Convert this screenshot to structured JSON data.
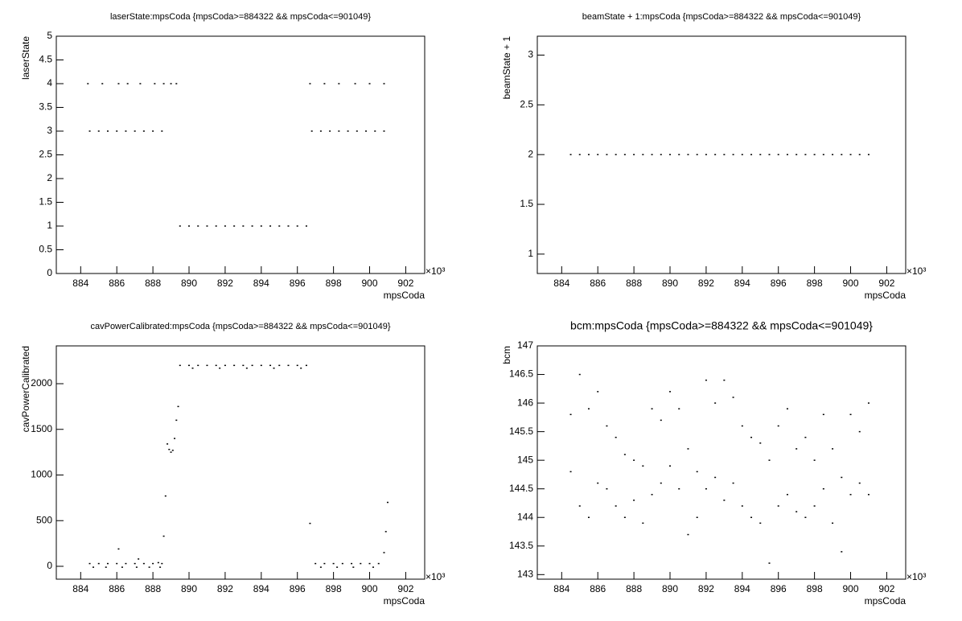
{
  "chart_data": [
    {
      "type": "scatter",
      "title": "laserState:mpsCoda {mpsCoda>=884322 && mpsCoda<=901049}",
      "x_label": "mpsCoda",
      "y_label": "laserState",
      "x_scale_label": "×10³",
      "color": "#000000",
      "xlim": [
        882.65,
        903.05
      ],
      "xticks": [
        884,
        886,
        888,
        890,
        892,
        894,
        896,
        898,
        900,
        902
      ],
      "ylim": [
        0,
        5
      ],
      "yticks": [
        0,
        0.5,
        1,
        1.5,
        2,
        2.5,
        3,
        3.5,
        4,
        4.5,
        5
      ],
      "x": [
        884.5,
        885,
        885.5,
        886,
        886.5,
        887,
        887.5,
        888,
        888.5,
        884.4,
        885.2,
        886.1,
        886.6,
        887.3,
        888.1,
        888.6,
        889.0,
        889.3,
        889.5,
        890,
        890.5,
        891,
        891.5,
        892,
        892.5,
        893,
        893.5,
        894,
        894.5,
        895,
        895.5,
        896,
        896.5,
        896.7,
        896.8,
        897.3,
        897.8,
        898.3,
        898.8,
        899.3,
        899.8,
        900.3,
        900.8,
        897.5,
        898.3,
        899.2,
        900.0,
        900.8
      ],
      "values": [
        3,
        3,
        3,
        3,
        3,
        3,
        3,
        3,
        3,
        4,
        4,
        4,
        4,
        4,
        4,
        4,
        4,
        4,
        1,
        1,
        1,
        1,
        1,
        1,
        1,
        1,
        1,
        1,
        1,
        1,
        1,
        1,
        1,
        4,
        3,
        3,
        3,
        3,
        3,
        3,
        3,
        3,
        3,
        4,
        4,
        4,
        4,
        4
      ]
    },
    {
      "type": "scatter",
      "title": "beamState + 1:mpsCoda {mpsCoda>=884322 && mpsCoda<=901049}",
      "x_label": "mpsCoda",
      "y_label": "beamState + 1",
      "x_scale_label": "×10³",
      "color": "#000000",
      "xlim": [
        882.65,
        903.05
      ],
      "xticks": [
        884,
        886,
        888,
        890,
        892,
        894,
        896,
        898,
        900,
        902
      ],
      "ylim": [
        0.805,
        3.19
      ],
      "yticks": [
        1,
        1.5,
        2,
        2.5,
        3
      ],
      "x": [
        884.5,
        885,
        885.5,
        886,
        886.5,
        887,
        887.5,
        888,
        888.5,
        889,
        889.5,
        890,
        890.5,
        891,
        891.5,
        892,
        892.5,
        893,
        893.5,
        894,
        894.5,
        895,
        895.5,
        896,
        896.5,
        897,
        897.5,
        898,
        898.5,
        899,
        899.5,
        900,
        900.5,
        901
      ],
      "values": [
        2,
        2,
        2,
        2,
        2,
        2,
        2,
        2,
        2,
        2,
        2,
        2,
        2,
        2,
        2,
        2,
        2,
        2,
        2,
        2,
        2,
        2,
        2,
        2,
        2,
        2,
        2,
        2,
        2,
        2,
        2,
        2,
        2,
        2
      ]
    },
    {
      "type": "scatter",
      "title": "cavPowerCalibrated:mpsCoda {mpsCoda>=884322 && mpsCoda<=901049}",
      "x_label": "mpsCoda",
      "y_label": "cavPowerCalibrated",
      "x_scale_label": "×10³",
      "color": "#000000",
      "xlim": [
        882.65,
        903.05
      ],
      "xticks": [
        884,
        886,
        888,
        890,
        892,
        894,
        896,
        898,
        900,
        902
      ],
      "ylim": [
        -141,
        2414
      ],
      "yticks": [
        0,
        500,
        1000,
        1500,
        2000
      ],
      "x": [
        884.5,
        885,
        885.5,
        886,
        886.5,
        887,
        887.5,
        888,
        888.5,
        884.7,
        885.4,
        886.3,
        887.1,
        887.8,
        888.4,
        886.1,
        887.2,
        888.3,
        888.6,
        888.7,
        888.8,
        888.9,
        889.0,
        889.1,
        889.2,
        889.3,
        889.4,
        889.5,
        890,
        890.5,
        891,
        891.5,
        892,
        892.5,
        893,
        893.5,
        894,
        894.5,
        895,
        895.5,
        896,
        896.5,
        890.2,
        891.7,
        893.2,
        894.7,
        896.2,
        896.7,
        897,
        897.5,
        898,
        898.5,
        899,
        899.5,
        900,
        900.5,
        897.3,
        898.2,
        899.1,
        900.2,
        900.8,
        900.9,
        901.0
      ],
      "values": [
        30,
        30,
        30,
        30,
        30,
        30,
        30,
        30,
        30,
        -10,
        -10,
        -10,
        -10,
        -10,
        -10,
        190,
        80,
        40,
        330,
        770,
        1340,
        1280,
        1250,
        1270,
        1400,
        1600,
        1750,
        2200,
        2200,
        2200,
        2200,
        2200,
        2200,
        2200,
        2200,
        2200,
        2200,
        2200,
        2200,
        2200,
        2200,
        2200,
        2170,
        2170,
        2170,
        2170,
        2170,
        470,
        30,
        30,
        30,
        30,
        30,
        30,
        30,
        30,
        -10,
        -10,
        -10,
        -10,
        150,
        380,
        700
      ]
    },
    {
      "type": "scatter",
      "title": "bcm:mpsCoda {mpsCoda>=884322 && mpsCoda<=901049}",
      "x_label": "mpsCoda",
      "y_label": "bcm",
      "x_scale_label": "×10³",
      "color": "#000000",
      "xlim": [
        882.65,
        903.05
      ],
      "xticks": [
        884,
        886,
        888,
        890,
        892,
        894,
        896,
        898,
        900,
        902
      ],
      "ylim": [
        142.92,
        147
      ],
      "yticks": [
        143,
        143.5,
        144,
        144.5,
        145,
        145.5,
        146,
        146.5,
        147
      ],
      "x": [
        884.5,
        885,
        885.5,
        886,
        886.5,
        887,
        887.5,
        888,
        888.5,
        889,
        889.5,
        890,
        890.5,
        891,
        891.5,
        892,
        892.5,
        893,
        893.5,
        894,
        894.5,
        895,
        895.5,
        896,
        896.5,
        897,
        897.5,
        898,
        898.5,
        899,
        899.5,
        900,
        900.5,
        901,
        884.5,
        885,
        885.5,
        886,
        886.5,
        887,
        887.5,
        888,
        888.5,
        889,
        889.5,
        890,
        890.5,
        891,
        891.5,
        892,
        892.5,
        893,
        893.5,
        894,
        894.5,
        895,
        895.5,
        896,
        896.5,
        897,
        897.5,
        898,
        898.5,
        899,
        899.5,
        900,
        900.5,
        901
      ],
      "values": [
        145.8,
        146.5,
        145.9,
        146.2,
        145.6,
        145.4,
        145.1,
        145.0,
        144.9,
        145.9,
        145.7,
        146.2,
        145.9,
        145.2,
        144.8,
        146.4,
        146.0,
        146.4,
        146.1,
        145.6,
        145.4,
        145.3,
        145.0,
        145.6,
        145.9,
        145.2,
        145.4,
        145.0,
        145.8,
        145.2,
        144.7,
        145.8,
        145.5,
        146.0,
        144.8,
        144.2,
        144.0,
        144.6,
        144.5,
        144.2,
        144.0,
        144.3,
        143.9,
        144.4,
        144.6,
        144.9,
        144.5,
        143.7,
        144.0,
        144.5,
        144.7,
        144.3,
        144.6,
        144.2,
        144.0,
        143.9,
        143.2,
        144.2,
        144.4,
        144.1,
        144.0,
        144.2,
        144.5,
        143.9,
        143.4,
        144.4,
        144.6,
        144.4
      ]
    }
  ]
}
